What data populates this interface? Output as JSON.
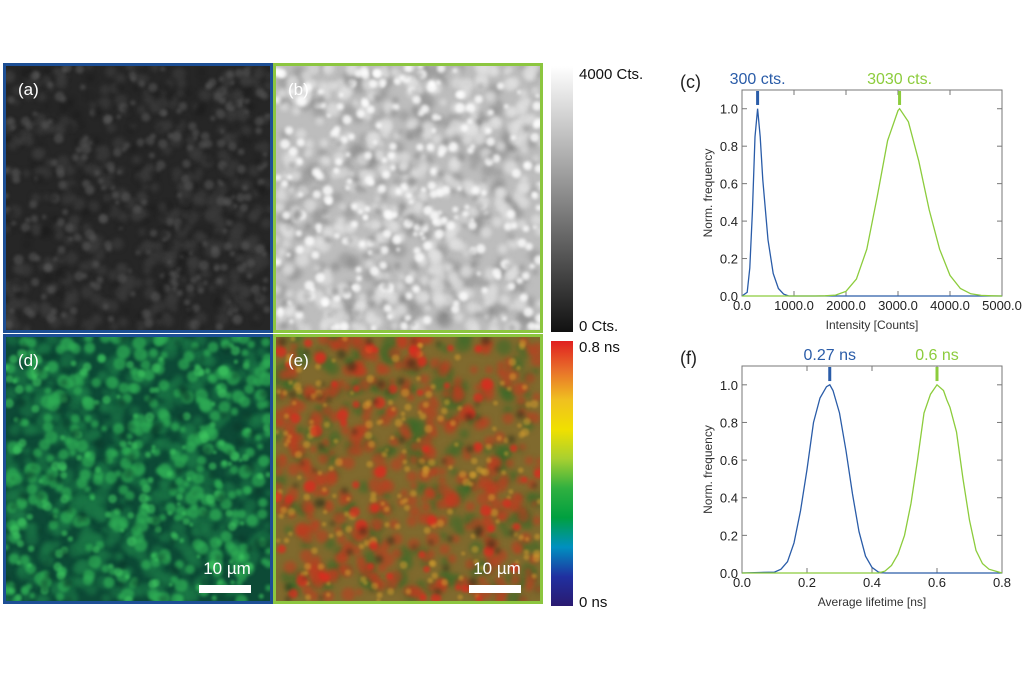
{
  "panels": {
    "a": {
      "label": "(a)",
      "border": "#1d4f95"
    },
    "b": {
      "label": "(b)",
      "border": "#8cc63f"
    },
    "d": {
      "label": "(d)",
      "border": "#1d4f95",
      "scale_bar": "10 µm"
    },
    "e": {
      "label": "(e)",
      "border": "#8cc63f",
      "scale_bar": "10 µm"
    }
  },
  "colorbars": {
    "intensity": {
      "max_label": "4000 Cts.",
      "min_label": "0 Cts.",
      "colors": [
        "#ffffff",
        "#111111"
      ]
    },
    "lifetime": {
      "max_label": "0.8 ns",
      "min_label": "0 ns",
      "colors": [
        "#e02020",
        "#e8702a",
        "#f0c020",
        "#f0e000",
        "#a8d030",
        "#30b040",
        "#00a040",
        "#0090c0",
        "#2030a0",
        "#2a1a70"
      ]
    }
  },
  "chart_data": [
    {
      "type": "line",
      "panel_label": "(c)",
      "xlabel": "Intensity [Counts]",
      "ylabel": "Norm. frequency",
      "xlim": [
        0,
        5000
      ],
      "ylim": [
        0,
        1.1
      ],
      "xticks": [
        "0.0",
        "1000.0",
        "2000.0",
        "3000.0",
        "4000.0",
        "5000.0"
      ],
      "yticks": [
        "0.0",
        "0.2",
        "0.4",
        "0.6",
        "0.8",
        "1.0"
      ],
      "grid": false,
      "series": [
        {
          "color": "#2a5ca8",
          "peak_label": "300 cts.",
          "peak": 300,
          "x": [
            0,
            100,
            150,
            200,
            250,
            300,
            350,
            400,
            500,
            600,
            700,
            800,
            900,
            1000,
            5000
          ],
          "y": [
            0,
            0.02,
            0.15,
            0.45,
            0.85,
            1.0,
            0.85,
            0.62,
            0.3,
            0.12,
            0.04,
            0.01,
            0,
            0,
            0
          ]
        },
        {
          "color": "#8ccc3c",
          "peak_label": "3030 cts.",
          "peak": 3030,
          "x": [
            0,
            1400,
            1600,
            1800,
            2000,
            2200,
            2400,
            2600,
            2800,
            3000,
            3030,
            3200,
            3400,
            3600,
            3800,
            4000,
            4200,
            4400,
            4600,
            4800,
            5000
          ],
          "y": [
            0,
            0,
            0.001,
            0.005,
            0.025,
            0.09,
            0.25,
            0.53,
            0.83,
            0.99,
            1.0,
            0.93,
            0.72,
            0.46,
            0.25,
            0.11,
            0.04,
            0.012,
            0.003,
            0.001,
            0
          ]
        }
      ]
    },
    {
      "type": "line",
      "panel_label": "(f)",
      "xlabel": "Average lifetime [ns]",
      "ylabel": "Norm. frequency",
      "xlim": [
        0,
        0.8
      ],
      "ylim": [
        0,
        1.1
      ],
      "xticks": [
        "0.0",
        "0.2",
        "0.4",
        "0.6",
        "0.8"
      ],
      "yticks": [
        "0.0",
        "0.2",
        "0.4",
        "0.6",
        "0.8",
        "1.0"
      ],
      "grid": false,
      "series": [
        {
          "color": "#2a5ca8",
          "peak_label": "0.27 ns",
          "peak": 0.27,
          "x": [
            0,
            0.1,
            0.12,
            0.14,
            0.16,
            0.18,
            0.2,
            0.22,
            0.24,
            0.26,
            0.27,
            0.28,
            0.3,
            0.32,
            0.34,
            0.36,
            0.38,
            0.4,
            0.42,
            0.44,
            0.8
          ],
          "y": [
            0,
            0.005,
            0.02,
            0.06,
            0.16,
            0.33,
            0.55,
            0.8,
            0.93,
            0.99,
            1.0,
            0.97,
            0.85,
            0.65,
            0.42,
            0.22,
            0.09,
            0.03,
            0.005,
            0,
            0
          ]
        },
        {
          "color": "#8ccc3c",
          "peak_label": "0.6 ns",
          "peak": 0.6,
          "x": [
            0,
            0.42,
            0.44,
            0.46,
            0.48,
            0.5,
            0.52,
            0.54,
            0.56,
            0.58,
            0.6,
            0.62,
            0.63,
            0.64,
            0.66,
            0.68,
            0.7,
            0.72,
            0.74,
            0.76,
            0.78,
            0.8
          ],
          "y": [
            0,
            0,
            0.01,
            0.04,
            0.1,
            0.2,
            0.37,
            0.6,
            0.85,
            0.95,
            1.0,
            0.97,
            0.92,
            0.88,
            0.75,
            0.5,
            0.28,
            0.12,
            0.05,
            0.02,
            0.01,
            0
          ]
        }
      ]
    }
  ]
}
